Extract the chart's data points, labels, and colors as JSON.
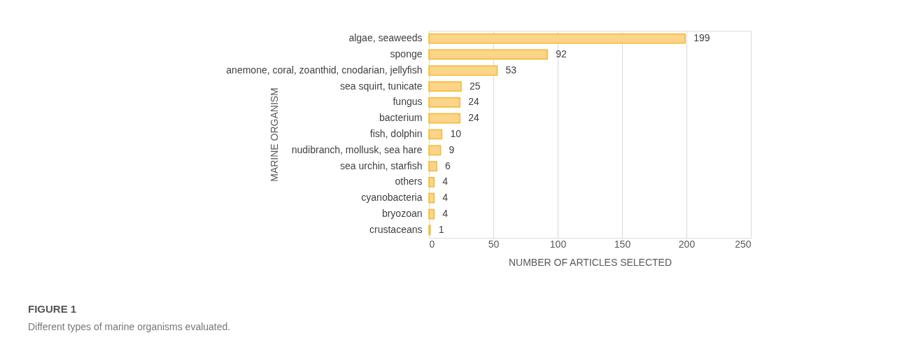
{
  "chart_data": {
    "type": "bar",
    "orientation": "horizontal",
    "xlabel": "NUMBER OF ARTICLES SELECTED",
    "ylabel": "MARINE ORGANISM",
    "categories": [
      "algae, seaweeds",
      "sponge",
      "anemone, coral, zoanthid, cnodarian, jellyfish",
      "sea squirt, tunicate",
      "fungus",
      "bacterium",
      "fish, dolphin",
      "nudibranch, mollusk, sea hare",
      "sea urchin, starfish",
      "others",
      "cyanobacteria",
      "bryozoan",
      "crustaceans"
    ],
    "values": [
      199,
      92,
      53,
      25,
      24,
      24,
      10,
      9,
      6,
      4,
      4,
      4,
      1
    ],
    "color": "#fcd48a",
    "xlim": [
      0,
      250
    ],
    "xticks": [
      0,
      50,
      100,
      150,
      200,
      250
    ],
    "grid": "x",
    "data_labels": true,
    "annotations": [
      "FIGURE 1",
      "Different types of marine organisms evaluated."
    ]
  }
}
